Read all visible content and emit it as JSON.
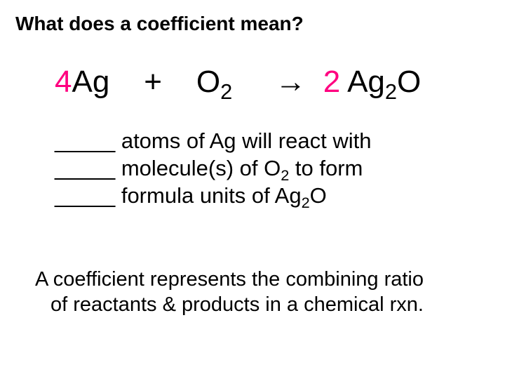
{
  "colors": {
    "text": "#000000",
    "coefficient": "#ff0080",
    "background": "#ffffff"
  },
  "title": "What does a coefficient mean?",
  "equation": {
    "coef1": "4",
    "sp1": "Ag",
    "plus": "+",
    "sp2_base": "O",
    "sp2_sub": "2",
    "arrow": "→",
    "coef2": "2",
    "sp3_base_a": "Ag",
    "sp3_sub_a": "2",
    "sp3_base_b": "O"
  },
  "fill": {
    "blank": "_____",
    "line1_rest": " atoms of Ag will react with",
    "line2_rest_a": " molecule(s) of O",
    "line2_sub": "2",
    "line2_rest_b": " to form",
    "line3_rest_a": " formula units of Ag",
    "line3_sub": "2",
    "line3_rest_b": "O"
  },
  "summary": {
    "line1": "A coefficient represents the combining ratio",
    "line2": "of reactants & products in a chemical rxn."
  }
}
